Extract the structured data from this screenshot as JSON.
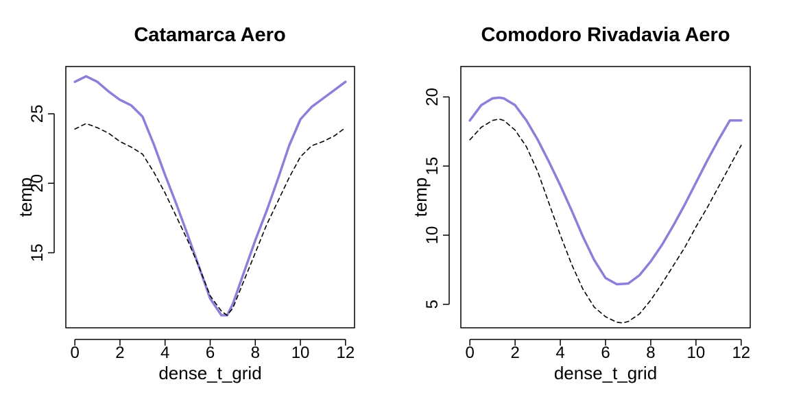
{
  "chart_data": [
    {
      "type": "line",
      "title": "Catamarca Aero",
      "xlabel": "dense_t_grid",
      "ylabel": "temp",
      "xlim": [
        -0.4,
        12.4
      ],
      "ylim": [
        9.6,
        28.4
      ],
      "x_ticks": [
        0,
        2,
        4,
        6,
        8,
        10,
        12
      ],
      "y_ticks": [
        15,
        20,
        25
      ],
      "grid": false,
      "series": [
        {
          "style": "solid",
          "color": "#8C7FD9",
          "x": [
            0,
            0.5,
            1,
            1.5,
            2,
            2.5,
            3,
            3.5,
            4,
            4.5,
            5,
            5.5,
            6,
            6.5,
            6.75,
            7,
            7.5,
            8,
            8.5,
            9,
            9.5,
            10,
            10.5,
            11,
            11.5,
            12
          ],
          "y": [
            27.3,
            27.7,
            27.3,
            26.6,
            26.0,
            25.6,
            24.8,
            22.8,
            20.6,
            18.5,
            16.3,
            14.0,
            11.7,
            10.5,
            10.5,
            11.3,
            13.6,
            15.9,
            18.0,
            20.3,
            22.7,
            24.6,
            25.5,
            26.1,
            26.7,
            27.3
          ]
        },
        {
          "style": "dashed",
          "color": "#000000",
          "x": [
            0,
            0.5,
            1,
            1.5,
            2,
            2.5,
            3,
            3.5,
            4,
            4.5,
            5,
            5.5,
            6,
            6.5,
            6.75,
            7,
            7.5,
            8,
            8.5,
            9,
            9.5,
            10,
            10.5,
            11,
            11.5,
            12
          ],
          "y": [
            23.9,
            24.3,
            24.0,
            23.6,
            23.0,
            22.6,
            22.1,
            20.8,
            19.3,
            17.6,
            15.9,
            14.0,
            11.9,
            10.8,
            10.5,
            11.0,
            13.0,
            15.0,
            17.0,
            18.7,
            20.4,
            21.9,
            22.7,
            23.0,
            23.4,
            24.0
          ]
        }
      ]
    },
    {
      "type": "line",
      "title": "Comodoro Rivadavia Aero",
      "xlabel": "dense_t_grid",
      "ylabel": "temp",
      "xlim": [
        -0.4,
        12.4
      ],
      "ylim": [
        3.3,
        22.2
      ],
      "x_ticks": [
        0,
        2,
        4,
        6,
        8,
        10,
        12
      ],
      "y_ticks": [
        5,
        10,
        15,
        20
      ],
      "grid": false,
      "series": [
        {
          "style": "solid",
          "color": "#8C7FD9",
          "x": [
            0,
            0.5,
            1,
            1.3,
            1.5,
            2,
            2.5,
            3,
            3.5,
            4,
            4.5,
            5,
            5.5,
            6,
            6.5,
            7,
            7.5,
            8,
            8.5,
            9,
            9.5,
            10,
            10.5,
            11,
            11.5,
            12
          ],
          "y": [
            18.3,
            19.4,
            19.9,
            19.95,
            19.9,
            19.4,
            18.3,
            16.9,
            15.3,
            13.6,
            11.8,
            9.9,
            8.2,
            6.9,
            6.45,
            6.5,
            7.1,
            8.1,
            9.3,
            10.7,
            12.2,
            13.8,
            15.4,
            16.9,
            18.3,
            18.3
          ]
        },
        {
          "style": "dashed",
          "color": "#000000",
          "x": [
            0,
            0.5,
            1,
            1.3,
            1.5,
            2,
            2.5,
            3,
            3.5,
            4,
            4.5,
            5,
            5.5,
            6,
            6.5,
            6.75,
            7,
            7.5,
            8,
            8.5,
            9,
            9.5,
            10,
            10.5,
            11,
            11.5,
            12
          ],
          "y": [
            16.9,
            17.8,
            18.3,
            18.4,
            18.3,
            17.6,
            16.4,
            14.6,
            12.3,
            10.0,
            7.9,
            6.1,
            4.8,
            4.1,
            3.7,
            3.65,
            3.75,
            4.3,
            5.3,
            6.5,
            7.8,
            9.1,
            10.6,
            12.0,
            13.5,
            15.0,
            16.5
          ]
        }
      ]
    }
  ]
}
